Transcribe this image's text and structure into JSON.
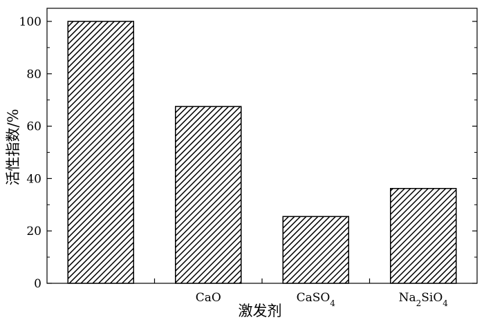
{
  "chart_data": {
    "type": "bar",
    "categories": [
      "",
      "CaO",
      "CaSO4",
      "Na2SiO4"
    ],
    "category_labels": [
      [],
      [
        {
          "t": "CaO"
        }
      ],
      [
        {
          "t": "CaSO"
        },
        {
          "t": "4",
          "sub": true
        }
      ],
      [
        {
          "t": "Na"
        },
        {
          "t": "2",
          "sub": true
        },
        {
          "t": "SiO"
        },
        {
          "t": "4",
          "sub": true
        }
      ]
    ],
    "values": [
      100,
      67.5,
      25.5,
      36.2
    ],
    "xlabel": "激发剂",
    "ylabel": "活性指数/%",
    "ylim": [
      0,
      105
    ],
    "yticks": [
      0,
      20,
      40,
      60,
      80,
      100
    ],
    "grid": false,
    "bar_fill": "diagonal-hatch",
    "colors": {
      "bar_stroke": "#000000",
      "hatch": "#000000",
      "background": "#ffffff"
    }
  }
}
